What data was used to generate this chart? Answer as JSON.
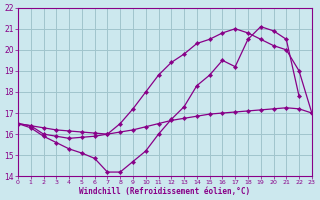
{
  "xlabel": "Windchill (Refroidissement éolien,°C)",
  "bg_color": "#cce8ee",
  "grid_color": "#a0c4cc",
  "line_color": "#880088",
  "xlim": [
    0,
    23
  ],
  "ylim": [
    14,
    22
  ],
  "xticks": [
    0,
    1,
    2,
    3,
    4,
    5,
    6,
    7,
    8,
    9,
    10,
    11,
    12,
    13,
    14,
    15,
    16,
    17,
    18,
    19,
    20,
    21,
    22,
    23
  ],
  "yticks": [
    14,
    15,
    16,
    17,
    18,
    19,
    20,
    21,
    22
  ],
  "line1_x": [
    0,
    1,
    2,
    3,
    4,
    5,
    6,
    7,
    8,
    9,
    10,
    11,
    12,
    13,
    14,
    15,
    16,
    17,
    18,
    19,
    20,
    21,
    22,
    23
  ],
  "line1_y": [
    16.5,
    16.4,
    16.3,
    16.2,
    16.15,
    16.1,
    16.05,
    16.0,
    16.1,
    16.2,
    16.35,
    16.5,
    16.65,
    16.75,
    16.85,
    16.95,
    17.0,
    17.05,
    17.1,
    17.15,
    17.2,
    17.25,
    17.2,
    17.0
  ],
  "line2_x": [
    0,
    1,
    2,
    3,
    4,
    5,
    6,
    7,
    8,
    9,
    10,
    11,
    12,
    13,
    14,
    15,
    16,
    17,
    18,
    19,
    20,
    21,
    22,
    23
  ],
  "line2_y": [
    16.5,
    16.4,
    16.0,
    15.9,
    15.8,
    15.85,
    15.9,
    16.0,
    16.5,
    17.2,
    18.0,
    18.8,
    19.4,
    19.8,
    20.3,
    20.5,
    20.8,
    21.0,
    20.8,
    20.5,
    20.2,
    20.0,
    19.0,
    17.0
  ],
  "line3_x": [
    0,
    1,
    2,
    3,
    4,
    5,
    6,
    7,
    8,
    9,
    10,
    11,
    12,
    13,
    14,
    15,
    16,
    17,
    18,
    19,
    20,
    21,
    22
  ],
  "line3_y": [
    16.5,
    16.3,
    15.9,
    15.6,
    15.3,
    15.1,
    14.85,
    14.2,
    14.2,
    14.7,
    15.2,
    16.0,
    16.7,
    17.3,
    18.3,
    18.8,
    19.5,
    19.2,
    20.5,
    21.1,
    20.9,
    20.5,
    17.8
  ]
}
